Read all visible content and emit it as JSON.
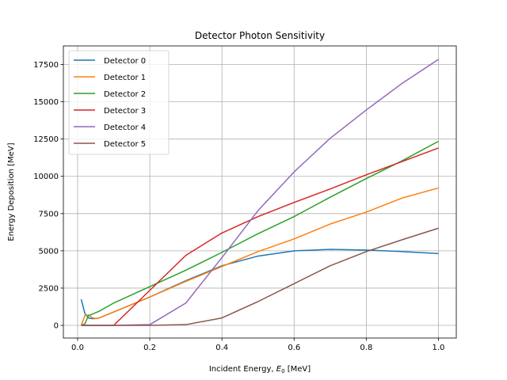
{
  "chart_data": {
    "type": "line",
    "title": "Detector Photon Sensitivity",
    "xlabel_prefix": "Incident Energy, ",
    "xlabel_symbol": "E",
    "xlabel_subscript": "0",
    "xlabel_suffix": " [MeV]",
    "ylabel": "Energy Deposition [MeV]",
    "xlim": [
      -0.0395,
      1.0495
    ],
    "ylim": [
      -850,
      18750
    ],
    "xticks": [
      0.0,
      0.2,
      0.4,
      0.6,
      0.8,
      1.0
    ],
    "xtick_labels": [
      "0.0",
      "0.2",
      "0.4",
      "0.6",
      "0.8",
      "1.0"
    ],
    "yticks": [
      0,
      2500,
      5000,
      7500,
      10000,
      12500,
      15000,
      17500
    ],
    "ytick_labels": [
      "0",
      "2500",
      "5000",
      "7500",
      "10000",
      "12500",
      "15000",
      "17500"
    ],
    "grid": true,
    "legend_position": "upper-left",
    "series": [
      {
        "name": "Detector 0",
        "color": "#1f77b4",
        "x": [
          0.01,
          0.02,
          0.03,
          0.04,
          0.05,
          0.06,
          0.08,
          0.1,
          0.15,
          0.2,
          0.3,
          0.4,
          0.5,
          0.6,
          0.7,
          0.8,
          0.9,
          1.0
        ],
        "y": [
          1750,
          800,
          500,
          450,
          460,
          500,
          700,
          900,
          1400,
          1900,
          3000,
          4000,
          4650,
          5000,
          5100,
          5050,
          4950,
          4820
        ]
      },
      {
        "name": "Detector 1",
        "color": "#ff7f0e",
        "x": [
          0.01,
          0.02,
          0.03,
          0.04,
          0.05,
          0.06,
          0.08,
          0.1,
          0.15,
          0.2,
          0.3,
          0.4,
          0.5,
          0.6,
          0.7,
          0.8,
          0.9,
          1.0
        ],
        "y": [
          0,
          650,
          700,
          520,
          460,
          500,
          700,
          900,
          1400,
          1900,
          2950,
          3950,
          4950,
          5800,
          6800,
          7600,
          8550,
          9220
        ]
      },
      {
        "name": "Detector 2",
        "color": "#2ca02c",
        "x": [
          0.01,
          0.02,
          0.03,
          0.06,
          0.1,
          0.2,
          0.3,
          0.4,
          0.5,
          0.6,
          0.7,
          0.8,
          0.9,
          1.0
        ],
        "y": [
          0,
          100,
          650,
          950,
          1500,
          2600,
          3700,
          4900,
          6150,
          7300,
          8600,
          9850,
          11050,
          12350
        ]
      },
      {
        "name": "Detector 3",
        "color": "#d62728",
        "x": [
          0.01,
          0.05,
          0.1,
          0.2,
          0.3,
          0.4,
          0.5,
          0.6,
          0.7,
          0.8,
          0.9,
          1.0
        ],
        "y": [
          0,
          0,
          0,
          2350,
          4700,
          6200,
          7300,
          8250,
          9150,
          10100,
          11000,
          11900
        ]
      },
      {
        "name": "Detector 4",
        "color": "#9467bd",
        "x": [
          0.01,
          0.1,
          0.2,
          0.3,
          0.4,
          0.5,
          0.6,
          0.7,
          0.8,
          0.9,
          1.0
        ],
        "y": [
          0,
          0,
          50,
          1500,
          4550,
          7700,
          10300,
          12550,
          14450,
          16250,
          17850
        ]
      },
      {
        "name": "Detector 5",
        "color": "#8c564b",
        "x": [
          0.01,
          0.1,
          0.2,
          0.3,
          0.4,
          0.5,
          0.6,
          0.7,
          0.8,
          0.9,
          1.0
        ],
        "y": [
          0,
          0,
          0,
          50,
          500,
          1600,
          2800,
          4000,
          4950,
          5750,
          6520
        ]
      }
    ]
  }
}
